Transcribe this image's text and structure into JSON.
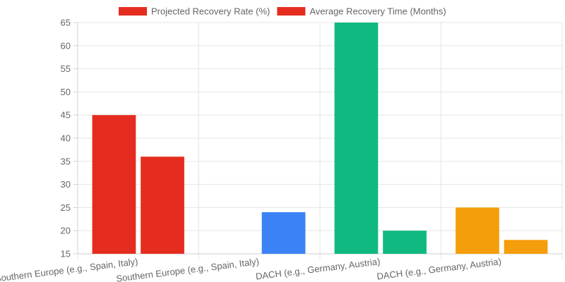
{
  "chart_data": {
    "type": "bar",
    "categories": [
      "Southern Europe (e.g., Spain, Italy)",
      "Southern Europe (e.g., Spain, Italy)",
      "DACH (e.g., Germany, Austria)",
      "DACH (e.g., Germany, Austria)"
    ],
    "series": [
      {
        "name": "Projected Recovery Rate (%)",
        "values": [
          45,
          null,
          65,
          25
        ],
        "colors": [
          "#e52d1f",
          "#e52d1f",
          "#10b981",
          "#f59e0b"
        ]
      },
      {
        "name": "Average Recovery Time (Months)",
        "values": [
          36,
          24,
          20,
          18
        ],
        "colors": [
          "#e52d1f",
          "#3b82f6",
          "#10b981",
          "#f59e0b"
        ]
      }
    ],
    "legend_colors": [
      "#e52d1f",
      "#e52d1f"
    ],
    "ylim": [
      15,
      65
    ],
    "yticks": [
      15,
      20,
      25,
      30,
      35,
      40,
      45,
      50,
      55,
      60,
      65
    ],
    "grid": true,
    "legend_position": "top"
  }
}
